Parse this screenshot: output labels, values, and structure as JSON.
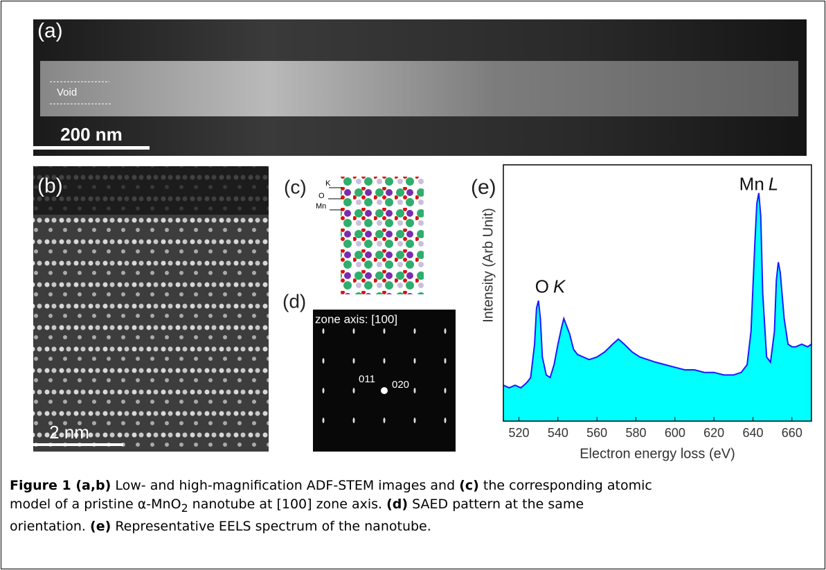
{
  "panels": {
    "a": {
      "label": "(a)",
      "void": "Void",
      "scale": "200 nm"
    },
    "b": {
      "label": "(b)",
      "scale": "2 nm"
    },
    "c": {
      "label": "(c)",
      "atoms": [
        "K",
        "O",
        "Mn"
      ]
    },
    "d": {
      "label": "(d)",
      "zone": "zone axis: [100]",
      "spots": [
        "011",
        "020"
      ]
    },
    "e": {
      "label": "(e)"
    }
  },
  "chart_data": {
    "type": "area",
    "color": "#00ffff",
    "line_color": "#1a1aff",
    "xlabel": "Electron energy loss (eV)",
    "ylabel": "Intensity (Arb Unit)",
    "annotations": [
      {
        "element": "O",
        "edge": "K",
        "x": 536,
        "y": 52
      },
      {
        "element": "Mn",
        "edge": "L",
        "x": 643,
        "y": 92
      }
    ],
    "x": [
      512,
      515,
      518,
      521,
      524,
      526,
      528,
      529,
      530,
      531,
      532,
      534,
      536,
      538,
      540,
      542,
      543,
      544,
      546,
      548,
      550,
      553,
      556,
      560,
      564,
      568,
      571,
      574,
      578,
      582,
      586,
      590,
      595,
      600,
      605,
      610,
      615,
      620,
      625,
      630,
      634,
      637,
      639,
      641,
      642,
      643,
      644,
      645,
      647,
      649,
      651,
      652,
      653,
      654,
      656,
      658,
      660,
      662,
      665,
      668,
      670
    ],
    "values": [
      14,
      13,
      14,
      13,
      15,
      17,
      30,
      44,
      47,
      40,
      25,
      18,
      17,
      22,
      30,
      37,
      40,
      38,
      34,
      28,
      26,
      25,
      24,
      25,
      27,
      30,
      32,
      30,
      27,
      25,
      24,
      23,
      22,
      21,
      20,
      20,
      19,
      19,
      18,
      18,
      19,
      22,
      35,
      70,
      85,
      89,
      80,
      50,
      25,
      23,
      35,
      55,
      62,
      58,
      40,
      30,
      29,
      29,
      30,
      29,
      30
    ],
    "xlim": [
      512,
      670
    ],
    "ylim": [
      0,
      100
    ],
    "xticks": [
      520,
      540,
      560,
      580,
      600,
      620,
      640,
      660
    ]
  },
  "caption": {
    "parts": [
      "Figure 1 (a,b)",
      " Low- and high-magnification ADF-STEM images and ",
      "(c)",
      " the corresponding atomic",
      "model of a pristine α-MnO",
      "2",
      " nanotube at [100] zone axis. ",
      "(d)",
      " SAED pattern at the same",
      "orientation. ",
      "(e)",
      " Representative EELS spectrum of the nanotube."
    ]
  }
}
